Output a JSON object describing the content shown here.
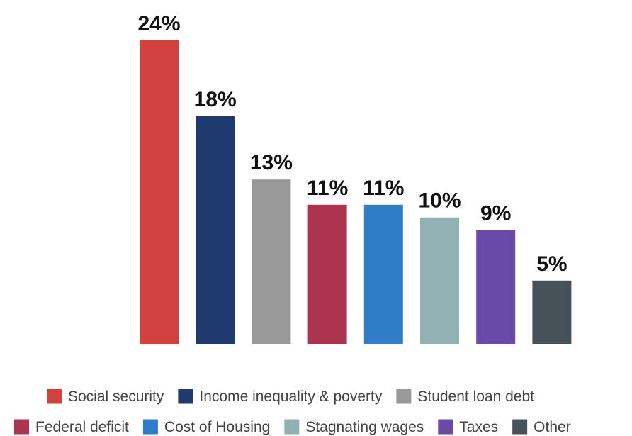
{
  "chart_data": {
    "type": "bar",
    "categories": [
      "Social security",
      "Income inequality & poverty",
      "Student loan debt",
      "Federal deficit",
      "Cost of Housing",
      "Stagnating wages",
      "Taxes",
      "Other"
    ],
    "values": [
      24,
      18,
      13,
      11,
      11,
      10,
      9,
      5
    ],
    "value_labels": [
      "24%",
      "18%",
      "13%",
      "11%",
      "11%",
      "10%",
      "9%",
      "5%"
    ],
    "colors": [
      "#cf4240",
      "#1f3a6e",
      "#999999",
      "#ad344f",
      "#2f7dc8",
      "#92b1b5",
      "#6a4aa8",
      "#455359"
    ],
    "title": "",
    "xlabel": "",
    "ylabel": "",
    "ylim": [
      0,
      24
    ],
    "grid": false,
    "legend": {
      "placement": "bottom",
      "rows": [
        [
          "Social security",
          "Income inequality & poverty",
          "Student loan debt"
        ],
        [
          "Federal deficit",
          "Cost of Housing",
          "Stagnating wages",
          "Taxes",
          "Other"
        ]
      ]
    }
  }
}
